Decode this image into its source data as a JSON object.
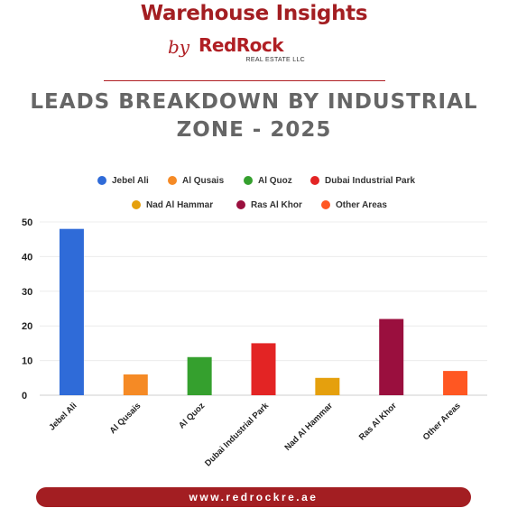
{
  "brand": {
    "title": "Warehouse Insights",
    "by": "by",
    "logo": "RedRock",
    "logo_sub": "REAL ESTATE LLC"
  },
  "footer": {
    "url": "www.redrockre.ae"
  },
  "colors": {
    "brand_red": "#a31e22",
    "title_gray": "#666666"
  },
  "chart_data": {
    "type": "bar",
    "title": "LEADS BREAKDOWN  BY INDUSTRIAL ZONE - 2025",
    "title_lines": [
      "LEADS BREAKDOWN  BY INDUSTRIAL",
      "ZONE - 2025"
    ],
    "categories": [
      "Jebel Ali",
      "Al Qusais",
      "Al Quoz",
      "Dubai Industrial Park",
      "Nad Al Hammar",
      "Ras Al Khor",
      "Other Areas"
    ],
    "values": [
      48,
      6,
      11,
      15,
      5,
      22,
      7
    ],
    "bar_colors": [
      "#2f6bd8",
      "#f58a25",
      "#35a02e",
      "#e32424",
      "#e5a00d",
      "#9a0f3e",
      "#ff5722"
    ],
    "legend_rows": [
      [
        "Jebel Ali",
        "Al Qusais",
        "Al Quoz",
        "Dubai Industrial Park"
      ],
      [
        "Nad Al Hammar",
        "Ras Al Khor",
        "Other Areas"
      ]
    ],
    "ylim": [
      0,
      50
    ],
    "yticks": [
      0,
      10,
      20,
      30,
      40,
      50
    ],
    "grid": true,
    "legend_position": "top",
    "xlabel": "",
    "ylabel": ""
  }
}
